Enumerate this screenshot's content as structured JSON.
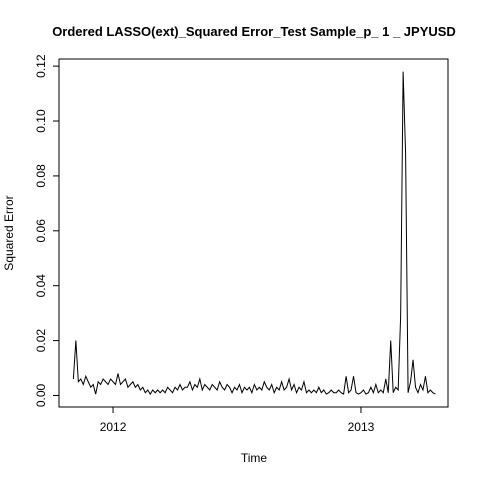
{
  "chart_data": {
    "type": "line",
    "title": "Ordered LASSO(ext)_Squared Error_Test Sample_p_ 1 _ JPYUSD",
    "x_label": "Time",
    "y_label": "Squared Error",
    "x": [
      2011.84,
      2011.85,
      2011.86,
      2011.87,
      2011.88,
      2011.89,
      2011.9,
      2011.91,
      2011.92,
      2011.93,
      2011.94,
      2011.95,
      2011.96,
      2011.97,
      2011.98,
      2011.99,
      2012.0,
      2012.01,
      2012.02,
      2012.03,
      2012.04,
      2012.05,
      2012.06,
      2012.07,
      2012.08,
      2012.09,
      2012.1,
      2012.11,
      2012.12,
      2012.13,
      2012.14,
      2012.15,
      2012.16,
      2012.17,
      2012.18,
      2012.19,
      2012.2,
      2012.21,
      2012.22,
      2012.23,
      2012.24,
      2012.25,
      2012.26,
      2012.27,
      2012.28,
      2012.29,
      2012.3,
      2012.31,
      2012.32,
      2012.33,
      2012.34,
      2012.35,
      2012.36,
      2012.37,
      2012.38,
      2012.39,
      2012.4,
      2012.41,
      2012.42,
      2012.43,
      2012.44,
      2012.45,
      2012.46,
      2012.47,
      2012.48,
      2012.49,
      2012.5,
      2012.51,
      2012.52,
      2012.53,
      2012.54,
      2012.55,
      2012.56,
      2012.57,
      2012.58,
      2012.59,
      2012.6,
      2012.61,
      2012.62,
      2012.63,
      2012.64,
      2012.65,
      2012.66,
      2012.67,
      2012.68,
      2012.69,
      2012.7,
      2012.71,
      2012.72,
      2012.73,
      2012.74,
      2012.75,
      2012.76,
      2012.77,
      2012.78,
      2012.79,
      2012.8,
      2012.81,
      2012.82,
      2012.83,
      2012.84,
      2012.85,
      2012.86,
      2012.87,
      2012.88,
      2012.89,
      2012.9,
      2012.91,
      2012.92,
      2012.93,
      2012.94,
      2012.95,
      2012.96,
      2012.97,
      2012.98,
      2012.99,
      2013.0,
      2013.01,
      2013.02,
      2013.03,
      2013.04,
      2013.05,
      2013.06,
      2013.07,
      2013.08,
      2013.09,
      2013.1,
      2013.11,
      2013.12,
      2013.13,
      2013.14,
      2013.15,
      2013.16,
      2013.17,
      2013.18,
      2013.19,
      2013.2,
      2013.21,
      2013.22,
      2013.23,
      2013.24,
      2013.25,
      2013.26,
      2013.27,
      2013.28,
      2013.29,
      2013.3
    ],
    "series": [
      {
        "color": "#000000",
        "values": [
          0.006,
          0.02,
          0.005,
          0.006,
          0.004,
          0.007,
          0.005,
          0.003,
          0.004,
          0.0005,
          0.005,
          0.004,
          0.006,
          0.005,
          0.004,
          0.006,
          0.005,
          0.004,
          0.008,
          0.004,
          0.005,
          0.006,
          0.003,
          0.004,
          0.005,
          0.003,
          0.004,
          0.002,
          0.003,
          0.001,
          0.002,
          0.0005,
          0.002,
          0.001,
          0.002,
          0.001,
          0.002,
          0.001,
          0.003,
          0.002,
          0.001,
          0.003,
          0.002,
          0.004,
          0.002,
          0.003,
          0.003,
          0.005,
          0.002,
          0.004,
          0.003,
          0.006,
          0.002,
          0.004,
          0.003,
          0.002,
          0.004,
          0.003,
          0.002,
          0.005,
          0.003,
          0.002,
          0.004,
          0.003,
          0.001,
          0.003,
          0.002,
          0.004,
          0.001,
          0.003,
          0.002,
          0.003,
          0.001,
          0.004,
          0.002,
          0.003,
          0.002,
          0.005,
          0.003,
          0.002,
          0.004,
          0.001,
          0.003,
          0.002,
          0.005,
          0.002,
          0.003,
          0.006,
          0.002,
          0.004,
          0.001,
          0.003,
          0.002,
          0.005,
          0.001,
          0.002,
          0.001,
          0.002,
          0.001,
          0.003,
          0.001,
          0.002,
          0.0005,
          0.001,
          0.002,
          0.001,
          0.001,
          0.002,
          0.001,
          0.0005,
          0.007,
          0.001,
          0.002,
          0.007,
          0.001,
          0.0005,
          0.001,
          0.002,
          0.0005,
          0.001,
          0.003,
          0.001,
          0.004,
          0.001,
          0.002,
          0.001,
          0.006,
          0.001,
          0.02,
          0.001,
          0.003,
          0.002,
          0.029,
          0.118,
          0.088,
          0.001,
          0.005,
          0.013,
          0.003,
          0.001,
          0.004,
          0.002,
          0.007,
          0.001,
          0.002,
          0.001,
          0.0005
        ]
      }
    ],
    "xlim": [
      2011.782,
      2013.351
    ],
    "ylim": [
      -0.0042,
      0.1226
    ],
    "xticks": [
      2012,
      2013
    ],
    "yticks": [
      {
        "value": 0,
        "label": "0.00"
      },
      0.02,
      0.04,
      0.06,
      0.08,
      {
        "value": 0.1,
        "label": "0.10"
      },
      0.12
    ]
  }
}
